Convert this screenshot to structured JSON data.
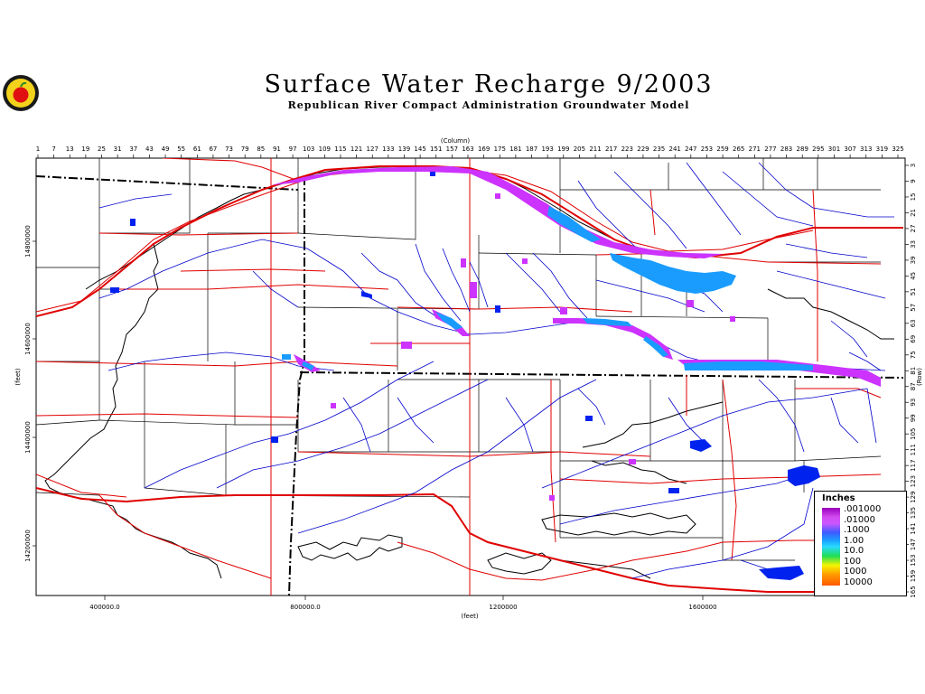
{
  "title": "Surface Water Recharge 9/2003",
  "subtitle": "Republican River Compact Administration Groundwater Model",
  "top_axis": {
    "title": "(Column)",
    "ticks": [
      "1",
      "7",
      "13",
      "19",
      "25",
      "31",
      "37",
      "43",
      "49",
      "55",
      "61",
      "67",
      "73",
      "79",
      "85",
      "91",
      "97",
      "103",
      "109",
      "115",
      "121",
      "127",
      "133",
      "139",
      "145",
      "151",
      "157",
      "163",
      "169",
      "175",
      "181",
      "187",
      "193",
      "199",
      "205",
      "211",
      "217",
      "223",
      "229",
      "235",
      "241",
      "247",
      "253",
      "259",
      "265",
      "271",
      "277",
      "283",
      "289",
      "295",
      "301",
      "307",
      "313",
      "319",
      "325"
    ]
  },
  "bottom_axis": {
    "title": "(feet)",
    "ticks": [
      "400000.0",
      "800000.0",
      "1200000",
      "1600000"
    ]
  },
  "left_axis": {
    "title": "(feet)",
    "ticks": [
      "14800000",
      "14600000",
      "14400000",
      "14200000"
    ]
  },
  "right_axis": {
    "title": "(Row)",
    "ticks": [
      "3",
      "9",
      "15",
      "21",
      "27",
      "33",
      "39",
      "45",
      "51",
      "57",
      "63",
      "69",
      "75",
      "81",
      "87",
      "93",
      "99",
      "105",
      "111",
      "117",
      "123",
      "129",
      "135",
      "141",
      "147",
      "153",
      "159",
      "165"
    ]
  },
  "legend": {
    "title": "Inches",
    "labels": [
      ".001000",
      ".01000",
      ".1000",
      "1.00",
      "10.0",
      "100",
      "1000",
      "10000"
    ]
  },
  "colors": {
    "state_border": "#000000",
    "county_lines": "#000000",
    "roads": "#e00000",
    "streams": "#0000cc",
    "recharge_low": "#cc33ff",
    "recharge_high": "#1a9cff"
  }
}
